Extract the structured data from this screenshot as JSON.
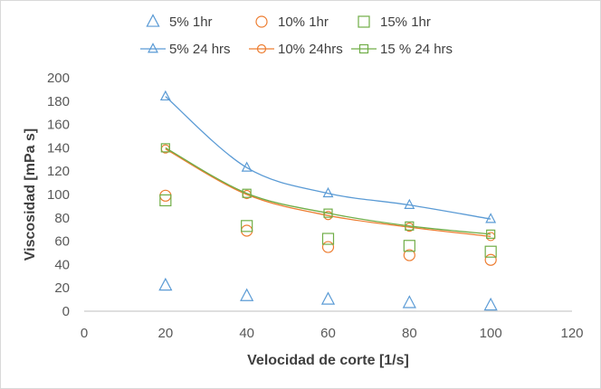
{
  "chart_data": {
    "type": "scatter",
    "xlabel": "Velocidad de corte [1/s]",
    "ylabel": "Viscosidad  [mPa s]",
    "xlim": [
      0,
      120
    ],
    "ylim": [
      0,
      200
    ],
    "x_ticks": [
      0,
      20,
      40,
      60,
      80,
      100,
      120
    ],
    "y_ticks": [
      0,
      20,
      40,
      60,
      80,
      100,
      120,
      140,
      160,
      180,
      200
    ],
    "grid": false,
    "legend_position": "top",
    "series": [
      {
        "name": "5% 1hr",
        "marker": "triangle",
        "line": false,
        "color": "#5b9bd5",
        "x": [
          20,
          40,
          60,
          80,
          100
        ],
        "y": [
          22,
          13,
          10,
          7,
          5
        ]
      },
      {
        "name": "10% 1hr",
        "marker": "circle",
        "line": false,
        "color": "#ed7d31",
        "x": [
          20,
          40,
          60,
          80,
          100
        ],
        "y": [
          99,
          69,
          55,
          48,
          44
        ]
      },
      {
        "name": "15% 1hr",
        "marker": "square",
        "line": false,
        "color": "#70ad47",
        "x": [
          20,
          40,
          60,
          80,
          100
        ],
        "y": [
          95,
          73,
          62,
          56,
          51
        ]
      },
      {
        "name": "5% 24 hrs",
        "marker": "triangle",
        "line": true,
        "color": "#5b9bd5",
        "x": [
          20,
          40,
          60,
          80,
          100
        ],
        "y": [
          184,
          123,
          101,
          91,
          79
        ]
      },
      {
        "name": "10% 24hrs",
        "marker": "circle",
        "line": true,
        "color": "#ed7d31",
        "x": [
          20,
          40,
          60,
          80,
          100
        ],
        "y": [
          139,
          100,
          82,
          72,
          64
        ]
      },
      {
        "name": "15 % 24 hrs",
        "marker": "square",
        "line": true,
        "color": "#70ad47",
        "x": [
          20,
          40,
          60,
          80,
          100
        ],
        "y": [
          140,
          101,
          84,
          73,
          66
        ]
      }
    ]
  }
}
